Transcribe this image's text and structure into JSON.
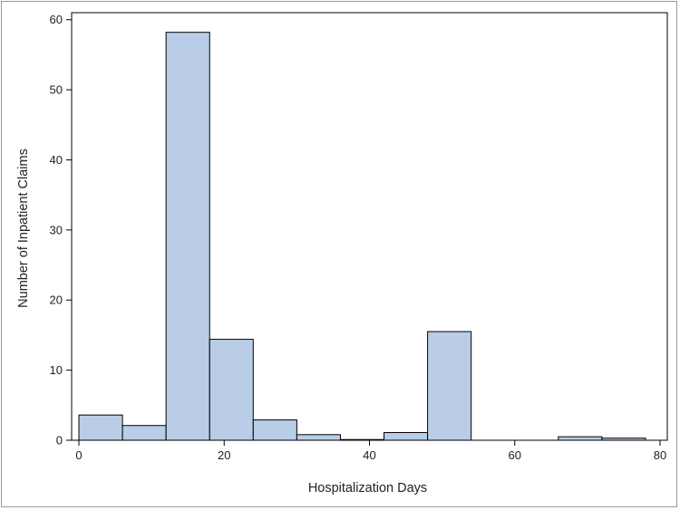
{
  "chart_data": {
    "type": "bar",
    "subtype": "histogram",
    "title": "",
    "xlabel": "Hospitalization Days",
    "ylabel": "Number of Inpatient Claims",
    "xlim": [
      -1,
      81
    ],
    "ylim": [
      0,
      61
    ],
    "x_ticks": [
      "0",
      "20",
      "40",
      "60",
      "80"
    ],
    "y_ticks": [
      "0",
      "10",
      "20",
      "30",
      "40",
      "50",
      "60"
    ],
    "bin_width": 6,
    "bins": [
      {
        "start": 0,
        "end": 6,
        "value": 3.6
      },
      {
        "start": 6,
        "end": 12,
        "value": 2.1
      },
      {
        "start": 12,
        "end": 18,
        "value": 58.2
      },
      {
        "start": 18,
        "end": 24,
        "value": 14.4
      },
      {
        "start": 24,
        "end": 30,
        "value": 2.9
      },
      {
        "start": 30,
        "end": 36,
        "value": 0.8
      },
      {
        "start": 36,
        "end": 42,
        "value": 0.1
      },
      {
        "start": 42,
        "end": 48,
        "value": 1.1
      },
      {
        "start": 48,
        "end": 54,
        "value": 15.5
      },
      {
        "start": 54,
        "end": 60,
        "value": 0
      },
      {
        "start": 60,
        "end": 66,
        "value": 0
      },
      {
        "start": 66,
        "end": 72,
        "value": 0.5
      },
      {
        "start": 72,
        "end": 78,
        "value": 0.3
      }
    ],
    "grid": false,
    "legend": "none",
    "bar_fill": "#b9cde6",
    "bar_stroke": "#000000"
  }
}
